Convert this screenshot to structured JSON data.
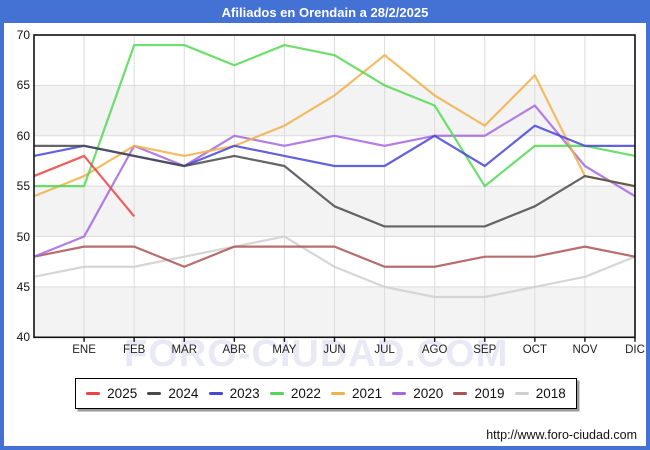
{
  "window": {
    "title": "Afiliados en Orendain a 28/2/2025"
  },
  "watermark": "FORO-CIUDAD.COM",
  "footer": {
    "url": "http://www.foro-ciudad.com"
  },
  "chart_data": {
    "type": "line",
    "title": "Afiliados en Orendain a 28/2/2025",
    "months": [
      "ENE",
      "FEB",
      "MAR",
      "ABR",
      "MAY",
      "JUN",
      "JUL",
      "AGO",
      "SEP",
      "OCT",
      "NOV",
      "DIC"
    ],
    "note": "each series has a lead-in point at the plot left edge (previous December) followed by 12 monthly values; 2025 runs only through FEB",
    "ylim": [
      40,
      70
    ],
    "yticks": [
      70,
      65,
      60,
      55,
      50,
      45,
      40
    ],
    "grid": true,
    "legend_position": "bottom",
    "shaded_bands": [
      [
        65,
        60
      ],
      [
        55,
        50
      ],
      [
        45,
        40
      ]
    ],
    "series": [
      {
        "name": "2025",
        "color": "#ee4343",
        "values": [
          56,
          58,
          52
        ]
      },
      {
        "name": "2024",
        "color": "#4a4a4a",
        "values": [
          59,
          59,
          58,
          57,
          58,
          57,
          53,
          51,
          51,
          51,
          53,
          56,
          55
        ]
      },
      {
        "name": "2023",
        "color": "#4646d8",
        "values": [
          58,
          59,
          58,
          57,
          59,
          58,
          57,
          57,
          60,
          57,
          61,
          59,
          59
        ]
      },
      {
        "name": "2022",
        "color": "#52d952",
        "values": [
          55,
          55,
          69,
          69,
          67,
          69,
          68,
          65,
          63,
          55,
          59,
          59,
          58
        ]
      },
      {
        "name": "2021",
        "color": "#f0b04a",
        "values": [
          54,
          56,
          59,
          58,
          59,
          61,
          64,
          68,
          64,
          61,
          66,
          56,
          55
        ]
      },
      {
        "name": "2020",
        "color": "#a566e0",
        "values": [
          48,
          50,
          59,
          57,
          60,
          59,
          60,
          59,
          60,
          60,
          63,
          57,
          54
        ]
      },
      {
        "name": "2019",
        "color": "#aa5555",
        "values": [
          48,
          49,
          49,
          47,
          49,
          49,
          49,
          47,
          47,
          48,
          48,
          49,
          48
        ]
      },
      {
        "name": "2018",
        "color": "#cfcfcf",
        "values": [
          46,
          47,
          47,
          48,
          49,
          50,
          47,
          45,
          44,
          44,
          45,
          46,
          48
        ]
      }
    ],
    "colors": {
      "frame": "#4372d4",
      "band": "#f3f3f3",
      "gridline": "#dcdcdc",
      "plot_border": "#111111"
    }
  }
}
